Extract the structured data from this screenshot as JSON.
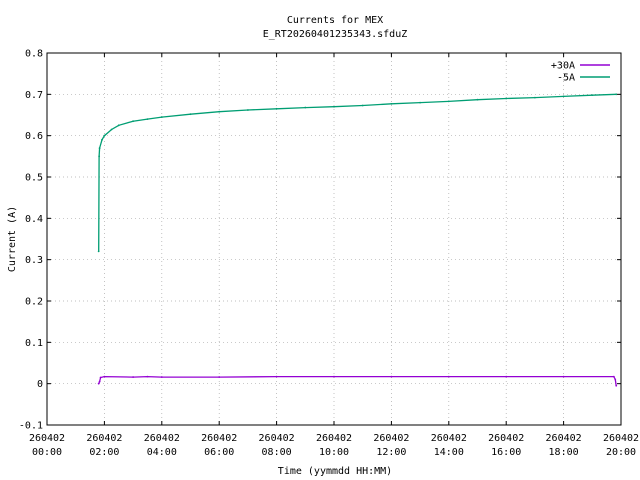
{
  "chart_data": {
    "type": "line",
    "title": "Currents for MEX",
    "subtitle": "E_RT20260401235343.sfduZ",
    "xlabel": "Time (yymmdd HH:MM)",
    "ylabel": "Current (A)",
    "xlim_hours": [
      0,
      20
    ],
    "ylim": [
      -0.1,
      0.8
    ],
    "grid": true,
    "legend_position": "top-right",
    "y_ticks": [
      "-0.1",
      "0",
      "0.1",
      "0.2",
      "0.3",
      "0.4",
      "0.5",
      "0.6",
      "0.7",
      "0.8"
    ],
    "x_ticks": [
      {
        "date": "260402",
        "time": "00:00"
      },
      {
        "date": "260402",
        "time": "02:00"
      },
      {
        "date": "260402",
        "time": "04:00"
      },
      {
        "date": "260402",
        "time": "06:00"
      },
      {
        "date": "260402",
        "time": "08:00"
      },
      {
        "date": "260402",
        "time": "10:00"
      },
      {
        "date": "260402",
        "time": "12:00"
      },
      {
        "date": "260402",
        "time": "14:00"
      },
      {
        "date": "260402",
        "time": "16:00"
      },
      {
        "date": "260402",
        "time": "18:00"
      },
      {
        "date": "260402",
        "time": "20:00"
      }
    ],
    "series": [
      {
        "name": "+30A",
        "color": "#9400d3",
        "x": [
          "01:48",
          "01:50",
          "01:52",
          "02:00",
          "03:00",
          "03:30",
          "04:00",
          "06:00",
          "08:00",
          "10:00",
          "12:00",
          "14:00",
          "16:00",
          "18:00",
          "19:45",
          "19:48",
          "19:50"
        ],
        "y": [
          0.0,
          0.005,
          0.015,
          0.017,
          0.016,
          0.017,
          0.016,
          0.016,
          0.017,
          0.017,
          0.017,
          0.017,
          0.017,
          0.017,
          0.017,
          0.01,
          -0.005
        ]
      },
      {
        "name": "-5A",
        "color": "#009e73",
        "x": [
          "01:48",
          "01:49",
          "01:50",
          "01:55",
          "02:00",
          "02:15",
          "02:30",
          "03:00",
          "03:30",
          "04:00",
          "05:00",
          "06:00",
          "07:00",
          "08:00",
          "09:00",
          "10:00",
          "11:00",
          "12:00",
          "13:00",
          "14:00",
          "15:00",
          "16:00",
          "17:00",
          "18:00",
          "19:00",
          "19:50"
        ],
        "y": [
          0.32,
          0.55,
          0.57,
          0.59,
          0.6,
          0.615,
          0.625,
          0.635,
          0.64,
          0.645,
          0.652,
          0.658,
          0.662,
          0.665,
          0.668,
          0.67,
          0.673,
          0.677,
          0.68,
          0.683,
          0.687,
          0.69,
          0.692,
          0.695,
          0.698,
          0.7
        ]
      }
    ]
  }
}
